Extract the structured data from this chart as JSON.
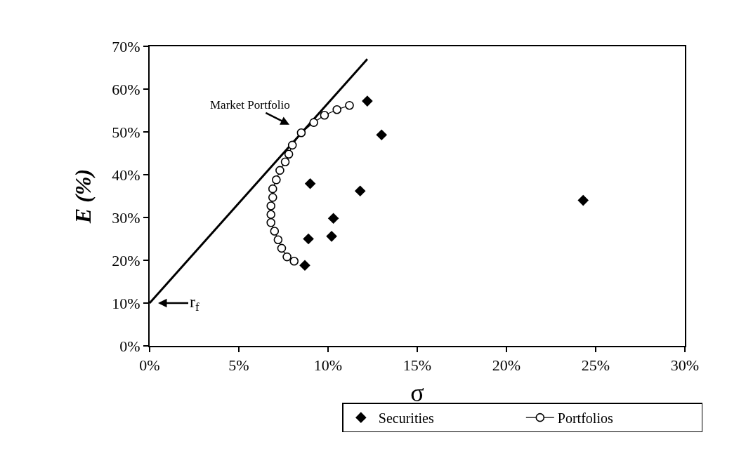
{
  "chart_data": {
    "type": "scatter",
    "xlabel": "σ",
    "ylabel": "E (%)",
    "xlim": [
      0,
      30
    ],
    "xticks": [
      {
        "value": 0,
        "label": "0%"
      },
      {
        "value": 5,
        "label": "5%"
      },
      {
        "value": 10,
        "label": "10%"
      },
      {
        "value": 15,
        "label": "15%"
      },
      {
        "value": 20,
        "label": "20%"
      },
      {
        "value": 25,
        "label": "25%"
      },
      {
        "value": 30,
        "label": "30%"
      }
    ],
    "ylim": [
      0,
      70
    ],
    "yticks": [
      {
        "value": 0,
        "label": "0%"
      },
      {
        "value": 10,
        "label": "10%"
      },
      {
        "value": 20,
        "label": "20%"
      },
      {
        "value": 30,
        "label": "30%"
      },
      {
        "value": 40,
        "label": "40%"
      },
      {
        "value": 50,
        "label": "50%"
      },
      {
        "value": 60,
        "label": "60%"
      },
      {
        "value": 70,
        "label": "70%"
      }
    ],
    "grid": false,
    "legend": "bottom",
    "series": [
      {
        "type": "line",
        "color": "#000000",
        "marker": "none",
        "x": [
          0,
          12.2
        ],
        "values": [
          10,
          67
        ]
      },
      {
        "name": "Securities",
        "color": "#000000",
        "marker": "diamond",
        "x": [
          12.2,
          13.0,
          9.0,
          11.8,
          10.3,
          8.9,
          10.2,
          8.7,
          24.3
        ],
        "values": [
          57.2,
          49.3,
          37.9,
          36.2,
          29.8,
          25.0,
          25.6,
          18.8,
          34.0
        ]
      },
      {
        "type": "line",
        "name": "Portfolios",
        "color": "#000000",
        "marker": "circle",
        "x": [
          11.2,
          10.5,
          9.8,
          9.2,
          8.5,
          8.0,
          7.8,
          7.6,
          7.3,
          7.1,
          6.9,
          6.9,
          6.8,
          6.8,
          6.8,
          7.0,
          7.2,
          7.4,
          7.7,
          8.1
        ],
        "values": [
          56.2,
          55.2,
          53.9,
          52.2,
          49.8,
          46.9,
          44.8,
          43.0,
          41.0,
          38.8,
          36.7,
          34.7,
          32.7,
          30.7,
          28.8,
          26.8,
          24.8,
          22.8,
          20.8,
          19.8
        ]
      }
    ],
    "annotations": [
      {
        "text": "Market Portfolio",
        "x": 8.4,
        "y": 50.5
      },
      {
        "text": "r$_{f}$",
        "x": 0,
        "y": 10
      }
    ]
  }
}
